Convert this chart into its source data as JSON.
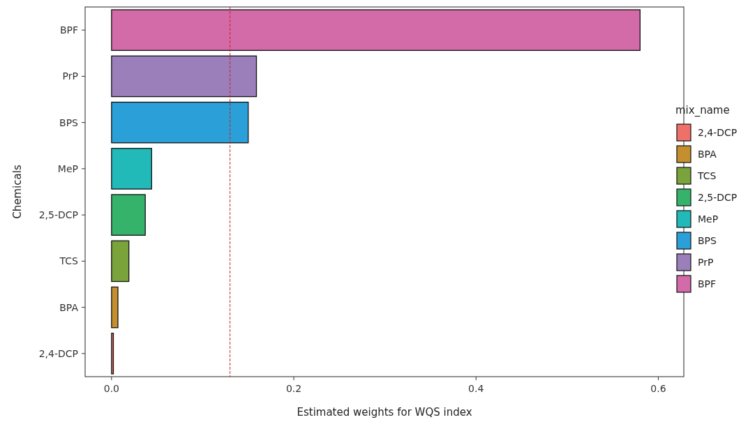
{
  "chart_data": {
    "type": "bar",
    "orientation": "horizontal",
    "stacked": true,
    "xlabel": "Estimated weights for WQS index",
    "ylabel": "Chemicals",
    "legend_title": "mix_name",
    "legend": "right",
    "grid": false,
    "categories": [
      "BPF",
      "PrP",
      "BPS",
      "MeP",
      "2,5-DCP",
      "TCS",
      "BPA",
      "2,4-DCP"
    ],
    "series": [
      {
        "name": "2,4-DCP",
        "color": "#ef7068",
        "values": [
          null,
          null,
          null,
          null,
          null,
          null,
          null,
          0.002
        ]
      },
      {
        "name": "BPA",
        "color": "#c58f2f",
        "values": [
          null,
          null,
          null,
          null,
          null,
          null,
          0.007,
          null
        ]
      },
      {
        "name": "TCS",
        "color": "#7aa33b",
        "values": [
          null,
          null,
          null,
          null,
          null,
          0.019,
          null,
          null
        ]
      },
      {
        "name": "2,5-DCP",
        "color": "#36b36b",
        "values": [
          null,
          null,
          null,
          null,
          0.037,
          null,
          null,
          null
        ]
      },
      {
        "name": "MeP",
        "color": "#22b9b9",
        "values": [
          null,
          null,
          null,
          0.044,
          null,
          null,
          null,
          null
        ]
      },
      {
        "name": "BPS",
        "color": "#2a9fd8",
        "values": [
          null,
          null,
          0.15,
          null,
          null,
          null,
          null,
          null
        ]
      },
      {
        "name": "PrP",
        "color": "#9b7fba",
        "values": [
          null,
          0.159,
          null,
          null,
          null,
          null,
          null,
          null
        ]
      },
      {
        "name": "BPF",
        "color": "#d36ba8",
        "values": [
          0.58,
          null,
          null,
          null,
          null,
          null,
          null,
          null
        ]
      }
    ],
    "xlim": [
      -0.029,
      0.628
    ],
    "xticks": [
      {
        "value": 0,
        "label": "0.0"
      },
      {
        "value": 0.2,
        "label": "0.2"
      },
      {
        "value": 0.4,
        "label": "0.4"
      },
      {
        "value": 0.6,
        "label": "0.6"
      }
    ],
    "ref_lines": [
      {
        "axis": "x",
        "value": 0.13,
        "color": "#c8242b",
        "line_style": "dashed"
      }
    ]
  }
}
